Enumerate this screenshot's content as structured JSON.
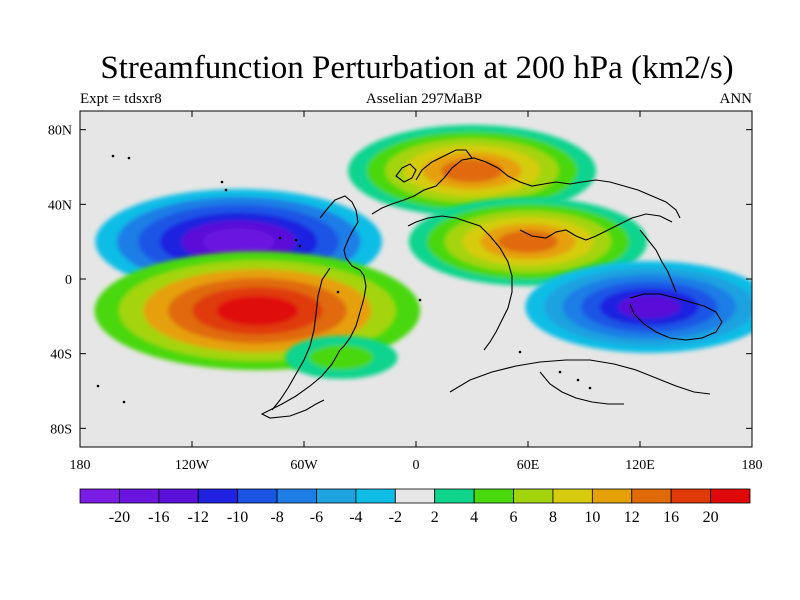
{
  "chart_data": {
    "type": "heatmap",
    "title": "Streamfunction Perturbation at 200 hPa (km2/s)",
    "subtitle_left": "Expt = tdsxr8",
    "subtitle_center": "Asselian 297MaBP",
    "subtitle_right": "ANN",
    "x_ticks": [
      "180",
      "120W",
      "60W",
      "0",
      "60E",
      "120E",
      "180"
    ],
    "x_tick_lons": [
      -180,
      -120,
      -60,
      0,
      60,
      120,
      180
    ],
    "y_ticks": [
      "80N",
      "40N",
      "0",
      "40S",
      "80S"
    ],
    "y_tick_lats": [
      80,
      40,
      0,
      -40,
      -80
    ],
    "xlim": [
      -180,
      180
    ],
    "ylim": [
      -90,
      90
    ],
    "colorbar": {
      "labels": [
        "-20",
        "-16",
        "-12",
        "-10",
        "-8",
        "-6",
        "-4",
        "-2",
        "2",
        "4",
        "6",
        "8",
        "10",
        "12",
        "16",
        "20"
      ],
      "colors": [
        "#7a1ce6",
        "#6a14e0",
        "#5a10d8",
        "#1f22e0",
        "#1a55e6",
        "#1f7ee6",
        "#1ea2e0",
        "#10bde6",
        "#e6e6e6",
        "#0fd48e",
        "#4ad80e",
        "#a4d40c",
        "#d6cc0c",
        "#e6a008",
        "#e06a08",
        "#e03a08",
        "#e00808"
      ]
    },
    "anomalies": [
      {
        "name": "high N Atlantic-Europe",
        "lon": 30,
        "lat": 58,
        "value": 14
      },
      {
        "name": "low N Pacific",
        "lon": -95,
        "lat": 20,
        "value": -18
      },
      {
        "name": "high E Pacific south",
        "lon": -85,
        "lat": -17,
        "value": 22
      },
      {
        "name": "high Africa-Asia band",
        "lon": 60,
        "lat": 20,
        "value": 13
      },
      {
        "name": "low Indian-W Pacific",
        "lon": 125,
        "lat": -15,
        "value": -14
      },
      {
        "name": "high S Atlantic",
        "lon": -40,
        "lat": -42,
        "value": 5
      }
    ]
  }
}
